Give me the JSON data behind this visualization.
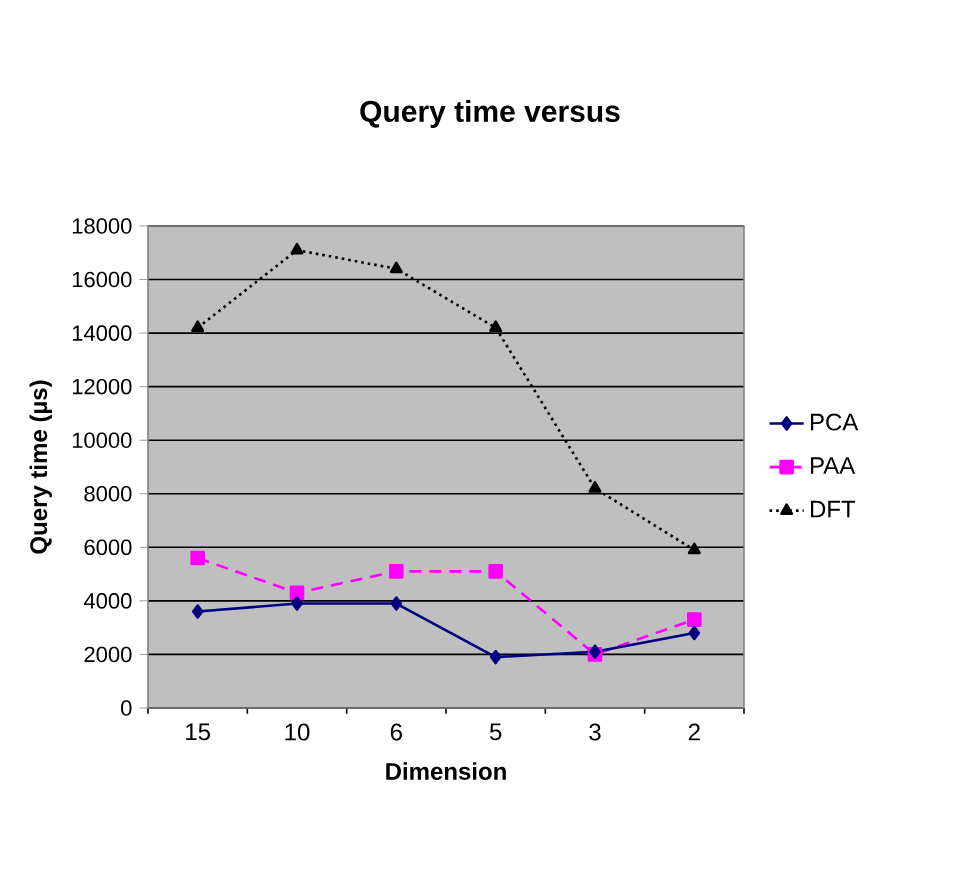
{
  "chart_data": {
    "type": "line",
    "title": "Query time versus",
    "xlabel": "Dimension",
    "ylabel": "Query time (µs)",
    "categories": [
      "15",
      "10",
      "6",
      "5",
      "3",
      "2"
    ],
    "series": [
      {
        "name": "PCA",
        "color": "#000080",
        "marker": "diamond",
        "line_style": "solid",
        "values": [
          3600,
          3900,
          3900,
          1900,
          2100,
          2800
        ]
      },
      {
        "name": "PAA",
        "color": "#ff00ff",
        "marker": "square",
        "line_style": "dashed",
        "values": [
          5600,
          4300,
          5100,
          5100,
          2000,
          3300
        ]
      },
      {
        "name": "DFT",
        "color": "#000000",
        "marker": "triangle",
        "line_style": "dotted",
        "values": [
          14200,
          17100,
          16400,
          14200,
          8200,
          5900
        ]
      }
    ],
    "ylim": [
      0,
      18000
    ],
    "yticks": [
      0,
      2000,
      4000,
      6000,
      8000,
      10000,
      12000,
      14000,
      16000,
      18000
    ],
    "grid": "y",
    "legend": "right"
  }
}
